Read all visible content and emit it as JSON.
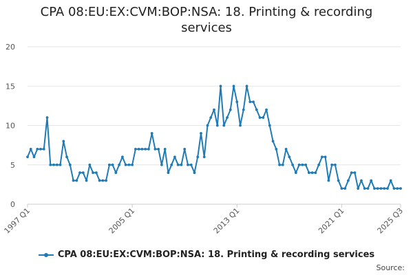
{
  "colors": {
    "series": "#1f7bb6",
    "grid": "#e6e6e6",
    "axis": "#cccccc"
  },
  "source_label": "Source:",
  "chart_data": {
    "type": "line",
    "title": "CPA 08:EU:EX:CVM:BOP:NSA: 18. Printing & recording services",
    "xlabel": "",
    "ylabel": "",
    "ylim": [
      0,
      20
    ],
    "yticks": [
      0,
      5,
      10,
      15,
      20
    ],
    "xlim": [
      "1997 Q1",
      "2025 Q3"
    ],
    "xticks": [
      "1997 Q1",
      "2005 Q1",
      "2013 Q1",
      "2021 Q1",
      "2025 Q3"
    ],
    "grid": true,
    "legend_position": "bottom",
    "series": [
      {
        "name": "CPA 08:EU:EX:CVM:BOP:NSA: 18. Printing & recording services",
        "x": [
          "1997 Q1",
          "1997 Q2",
          "1997 Q3",
          "1997 Q4",
          "1998 Q1",
          "1998 Q2",
          "1998 Q3",
          "1998 Q4",
          "1999 Q1",
          "1999 Q2",
          "1999 Q3",
          "1999 Q4",
          "2000 Q1",
          "2000 Q2",
          "2000 Q3",
          "2000 Q4",
          "2001 Q1",
          "2001 Q2",
          "2001 Q3",
          "2001 Q4",
          "2002 Q1",
          "2002 Q2",
          "2002 Q3",
          "2002 Q4",
          "2003 Q1",
          "2003 Q2",
          "2003 Q3",
          "2003 Q4",
          "2004 Q1",
          "2004 Q2",
          "2004 Q3",
          "2004 Q4",
          "2005 Q1",
          "2005 Q2",
          "2005 Q3",
          "2005 Q4",
          "2006 Q1",
          "2006 Q2",
          "2006 Q3",
          "2006 Q4",
          "2007 Q1",
          "2007 Q2",
          "2007 Q3",
          "2007 Q4",
          "2008 Q1",
          "2008 Q2",
          "2008 Q3",
          "2008 Q4",
          "2009 Q1",
          "2009 Q2",
          "2009 Q3",
          "2009 Q4",
          "2010 Q1",
          "2010 Q2",
          "2010 Q3",
          "2010 Q4",
          "2011 Q1",
          "2011 Q2",
          "2011 Q3",
          "2011 Q4",
          "2012 Q1",
          "2012 Q2",
          "2012 Q3",
          "2012 Q4",
          "2013 Q1",
          "2013 Q2",
          "2013 Q3",
          "2013 Q4",
          "2014 Q1",
          "2014 Q2",
          "2014 Q3",
          "2014 Q4",
          "2015 Q1",
          "2015 Q2",
          "2015 Q3",
          "2015 Q4",
          "2016 Q1",
          "2016 Q2",
          "2016 Q3",
          "2016 Q4",
          "2017 Q1",
          "2017 Q2",
          "2017 Q3",
          "2017 Q4",
          "2018 Q1",
          "2018 Q2",
          "2018 Q3",
          "2018 Q4",
          "2019 Q1",
          "2019 Q2",
          "2019 Q3",
          "2019 Q4",
          "2020 Q1",
          "2020 Q2",
          "2020 Q3",
          "2020 Q4",
          "2021 Q1",
          "2021 Q2",
          "2021 Q3",
          "2021 Q4",
          "2022 Q1",
          "2022 Q2",
          "2022 Q3",
          "2022 Q4",
          "2023 Q1",
          "2023 Q2",
          "2023 Q3",
          "2023 Q4",
          "2024 Q1",
          "2024 Q2",
          "2024 Q3",
          "2024 Q4",
          "2025 Q1",
          "2025 Q2",
          "2025 Q3"
        ],
        "values": [
          6,
          7,
          6,
          7,
          7,
          7,
          11,
          5,
          5,
          5,
          5,
          8,
          6,
          5,
          3,
          3,
          4,
          4,
          3,
          5,
          4,
          4,
          3,
          3,
          3,
          5,
          5,
          4,
          5,
          6,
          5,
          5,
          5,
          7,
          7,
          7,
          7,
          7,
          9,
          7,
          7,
          5,
          7,
          4,
          5,
          6,
          5,
          5,
          7,
          5,
          5,
          4,
          6,
          9,
          6,
          10,
          11,
          12,
          10,
          15,
          10,
          11,
          12,
          15,
          13,
          10,
          12,
          15,
          13,
          13,
          12,
          11,
          11,
          12,
          10,
          8,
          7,
          5,
          5,
          7,
          6,
          5,
          4,
          5,
          5,
          5,
          4,
          4,
          4,
          5,
          6,
          6,
          3,
          5,
          5,
          3,
          2,
          2,
          3,
          4,
          4,
          2,
          3,
          2,
          2,
          3,
          2,
          2,
          2,
          2,
          2,
          3,
          2,
          2,
          2
        ]
      }
    ]
  }
}
